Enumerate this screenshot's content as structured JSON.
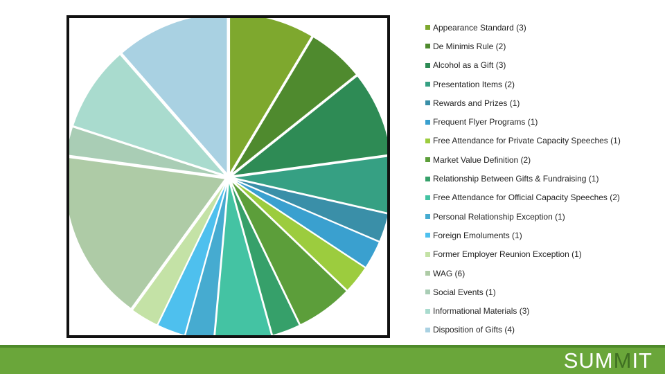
{
  "chart_data": {
    "type": "pie",
    "title": "",
    "categories": [
      "Appearance Standard (3)",
      "De Minimis Rule (2)",
      "Alcohol as a Gift (3)",
      "Presentation Items (2)",
      "Rewards and Prizes (1)",
      "Frequent Flyer Programs (1)",
      "Free Attendance for Private Capacity Speeches (1)",
      "Market Value Definition (2)",
      "Relationship Between Gifts & Fundraising (1)",
      "Free Attendance for Official Capacity Speeches (2)",
      "Personal Relationship Exception (1)",
      "Foreign Emoluments (1)",
      "Former Employer Reunion Exception (1)",
      "WAG (6)",
      "Social Events (1)",
      "Informational Materials (3)",
      "Disposition of Gifts (4)"
    ],
    "values": [
      3,
      2,
      3,
      2,
      1,
      1,
      1,
      2,
      1,
      2,
      1,
      1,
      1,
      6,
      1,
      3,
      4
    ],
    "colors": [
      "#7ea82e",
      "#4f8a2e",
      "#2e8b55",
      "#36a083",
      "#3a8fa8",
      "#3aa0cf",
      "#9ccc3e",
      "#5c9e3a",
      "#36a06a",
      "#44c3a3",
      "#46abd0",
      "#4ec0ee",
      "#c4e2a6",
      "#aecba6",
      "#a9cdb5",
      "#a9dbce",
      "#a9d1e2"
    ],
    "legend_position": "right"
  },
  "footer": {
    "logo_part_a": "SUM",
    "logo_part_b": "M",
    "logo_part_c": "IT",
    "bar_color": "#6aa63a"
  }
}
